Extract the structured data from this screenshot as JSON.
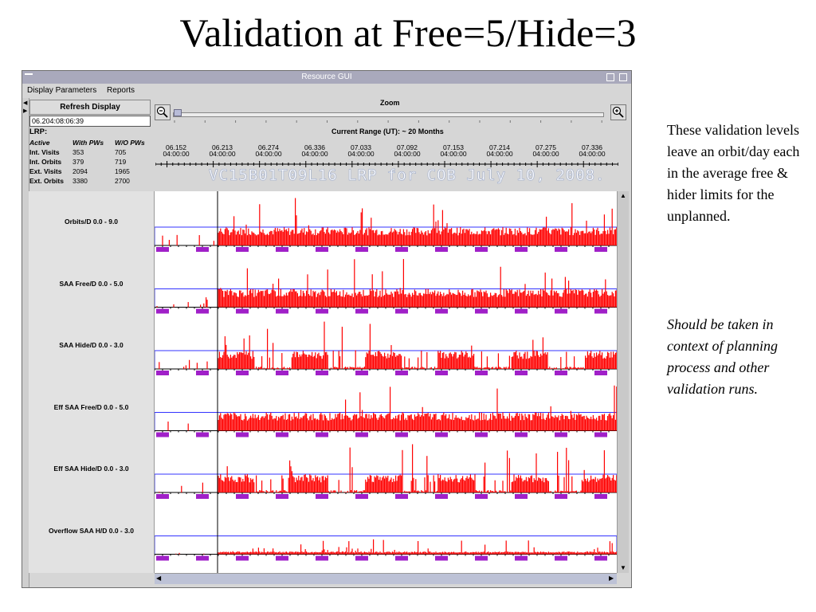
{
  "slide": {
    "title": "Validation at Free=5/Hide=3",
    "note_plain": "These validation levels leave an orbit/day each in the average free & hider limits for the unplanned.",
    "note_italic": "Should be taken in context of planning process and other validation runs."
  },
  "window": {
    "title": "Resource GUI"
  },
  "menu": {
    "items": [
      "Display Parameters",
      "Reports"
    ]
  },
  "left_panel": {
    "refresh_label": "Refresh Display",
    "date_value": "06.204:08:06:39",
    "lrp_label": "LRP:",
    "stats_header": [
      "Active",
      "With PWs",
      "W/O PWs"
    ],
    "stats_rows": [
      [
        "Int. Visits",
        "353",
        "705"
      ],
      [
        "Int. Orbits",
        "379",
        "719"
      ],
      [
        "Ext. Visits",
        "2094",
        "1965"
      ],
      [
        "Ext. Orbits",
        "3380",
        "2700"
      ]
    ]
  },
  "toolbar": {
    "zoom_label": "Zoom",
    "zoom_level": 0.0,
    "range_label": "Current Range (UT): ~ 20 Months"
  },
  "timeline": {
    "dates": [
      {
        "day": "06.152",
        "time": "04:00:00"
      },
      {
        "day": "06.213",
        "time": "04:00:00"
      },
      {
        "day": "06.274",
        "time": "04:00:00"
      },
      {
        "day": "06.336",
        "time": "04:00:00"
      },
      {
        "day": "07.033",
        "time": "04:00:00"
      },
      {
        "day": "07.092",
        "time": "04:00:00"
      },
      {
        "day": "07.153",
        "time": "04:00:00"
      },
      {
        "day": "07.214",
        "time": "04:00:00"
      },
      {
        "day": "07.275",
        "time": "04:00:00"
      },
      {
        "day": "07.336",
        "time": "04:00:00"
      }
    ],
    "banner": "VC15B01T09L16 LRP for COB July 10, 2008."
  },
  "tracks": [
    {
      "label": "Orbits/D 0.0 - 9.0",
      "level": 1.0
    },
    {
      "label": "SAA Free/D 0.0 - 5.0",
      "level": 1.0
    },
    {
      "label": "SAA Hide/D 0.0 - 3.0",
      "level": 1.0
    },
    {
      "label": "Eff SAA Free/D 0.0 - 5.0",
      "level": 1.0
    },
    {
      "label": "Eff SAA Hide/D 0.0 - 3.0",
      "level": 1.0
    },
    {
      "label": "Overflow SAA H/D 0.0 - 3.0",
      "level": 0.15
    }
  ],
  "colors": {
    "bar": "#ff0000",
    "limit_line": "#3333ff",
    "purple_block": "#a020c8",
    "cursor": "#000000"
  }
}
